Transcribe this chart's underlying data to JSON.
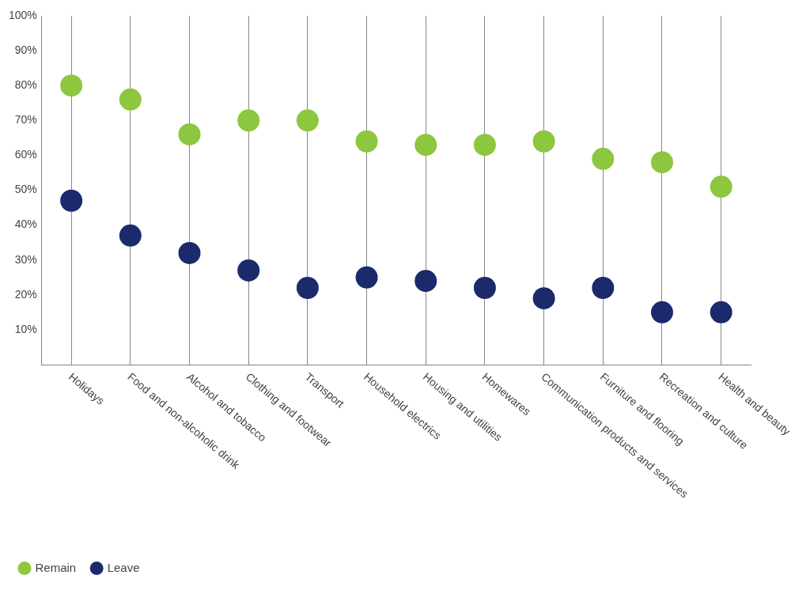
{
  "chart_data": {
    "type": "scatter",
    "categories": [
      "Holidays",
      "Food and non-alcoholic drink",
      "Alcohol and tobacco",
      "Clothing and footwear",
      "Transport",
      "Household electrics",
      "Housing and utilities",
      "Homewares",
      "Communication products and services",
      "Furniture and flooring",
      "Recreation and culture",
      "Health and beauty"
    ],
    "series": [
      {
        "name": "Remain",
        "color": "#8dc63f",
        "values": [
          80,
          76,
          66,
          70,
          70,
          64,
          63,
          63,
          64,
          59,
          58,
          51
        ]
      },
      {
        "name": "Leave",
        "color": "#1b2a6b",
        "values": [
          47,
          37,
          32,
          27,
          22,
          25,
          24,
          22,
          19,
          22,
          15,
          15
        ]
      }
    ],
    "ylim": [
      0,
      100
    ],
    "yticks": [
      {
        "value": 10,
        "label": "10%"
      },
      {
        "value": 20,
        "label": "20%"
      },
      {
        "value": 30,
        "label": "30%"
      },
      {
        "value": 40,
        "label": "40%"
      },
      {
        "value": 50,
        "label": "50%"
      },
      {
        "value": 60,
        "label": "60%"
      },
      {
        "value": 70,
        "label": "70%"
      },
      {
        "value": 80,
        "label": "80%"
      },
      {
        "value": 90,
        "label": "90%"
      },
      {
        "value": 100,
        "label": "100%"
      }
    ],
    "grid": "x",
    "legend": "bottom left",
    "marker": "circle"
  }
}
